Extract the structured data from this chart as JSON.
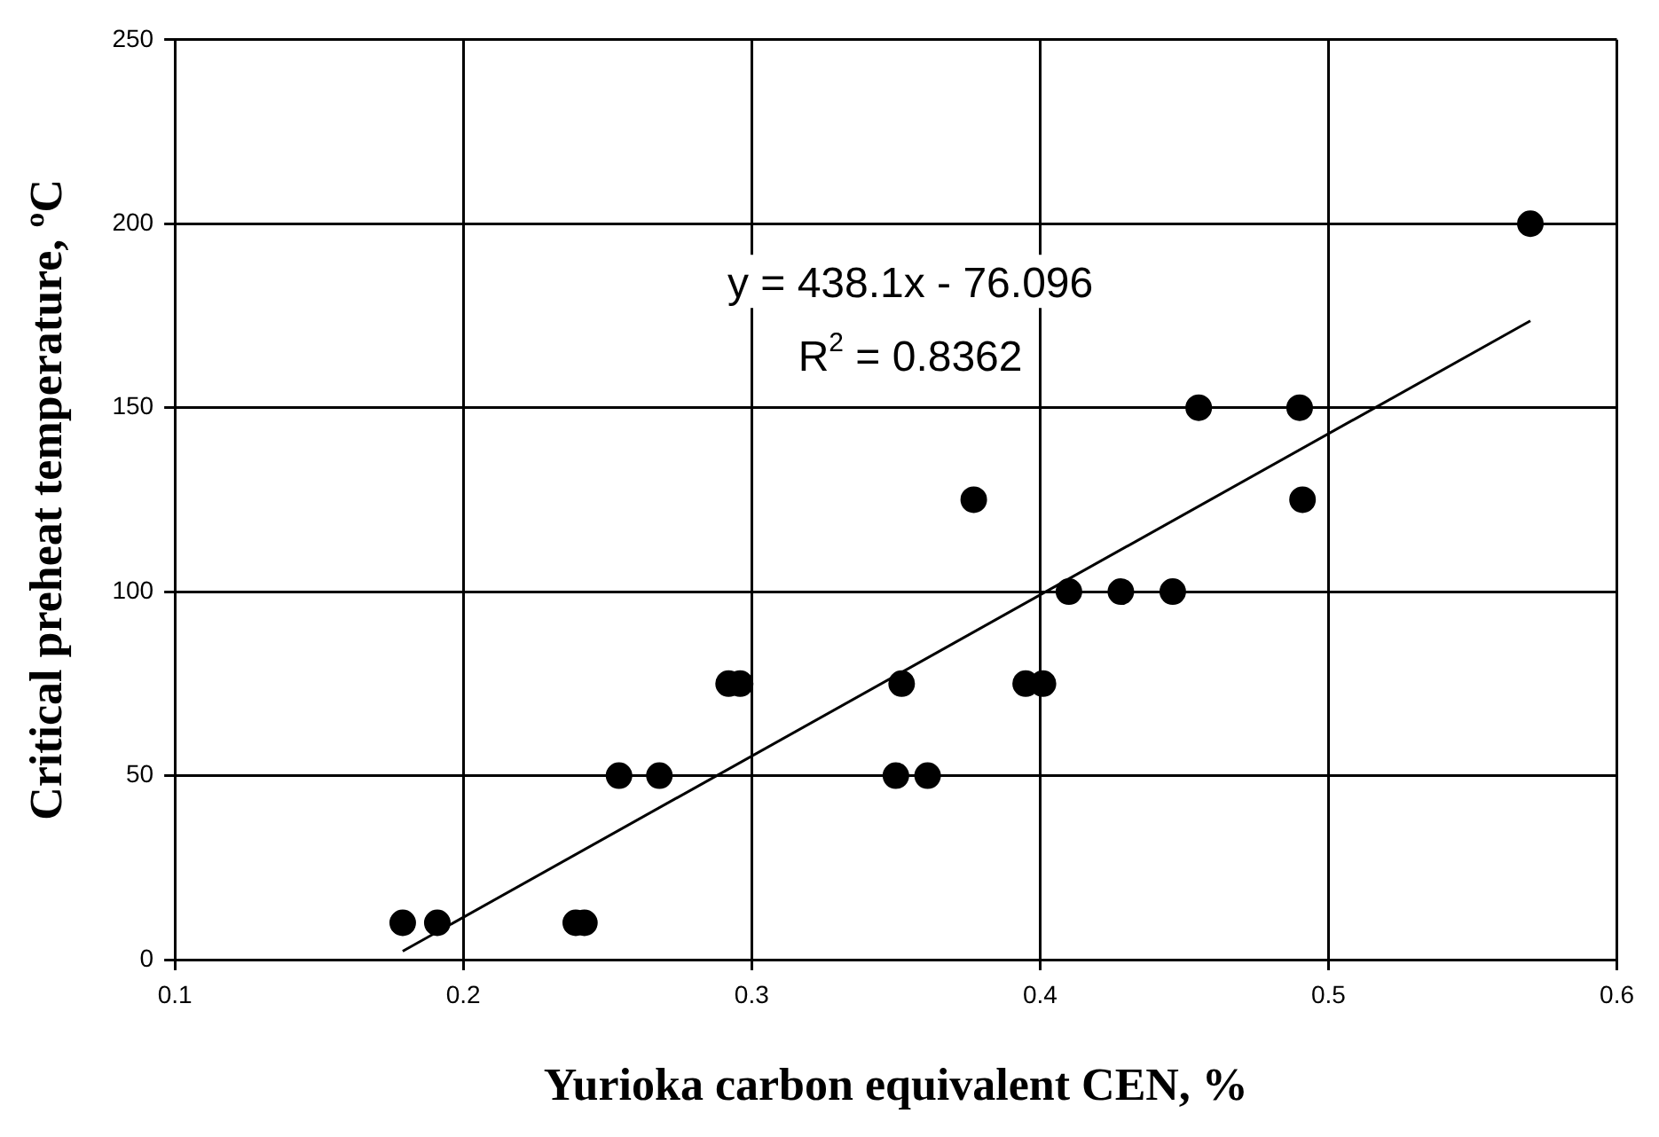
{
  "chart_data": {
    "type": "scatter",
    "xlabel": "Yurioka carbon equivalent CEN, %",
    "ylabel": "Critical preheat temperature, ºC",
    "annotations": [
      "y = 438.1x - 76.096",
      "R$^{2}$ = 0.8362"
    ],
    "series": [
      {
        "color": "#000000",
        "marker": "circle",
        "x": [
          0.179,
          0.191,
          0.239,
          0.242,
          0.254,
          0.268,
          0.292,
          0.296,
          0.35,
          0.361,
          0.352,
          0.377,
          0.395,
          0.401,
          0.41,
          0.428,
          0.446,
          0.455,
          0.49,
          0.491,
          0.57
        ],
        "values": [
          10,
          10,
          10,
          10,
          50,
          50,
          75,
          75,
          50,
          50,
          75,
          125,
          75,
          75,
          100,
          100,
          100,
          150,
          150,
          125,
          200
        ]
      },
      {
        "type": "line",
        "color": "#000000",
        "marker": "none",
        "x": [
          0.179,
          0.57
        ],
        "values": [
          2.3,
          173.6
        ]
      }
    ],
    "xlim": [
      0.1,
      0.6
    ],
    "xticks": [
      0.1,
      0.2,
      0.3,
      0.4,
      0.5,
      0.6
    ],
    "ylim": [
      0,
      250
    ],
    "yticks": [
      0,
      50,
      100,
      150,
      200,
      250
    ],
    "grid": true,
    "legend": false
  }
}
